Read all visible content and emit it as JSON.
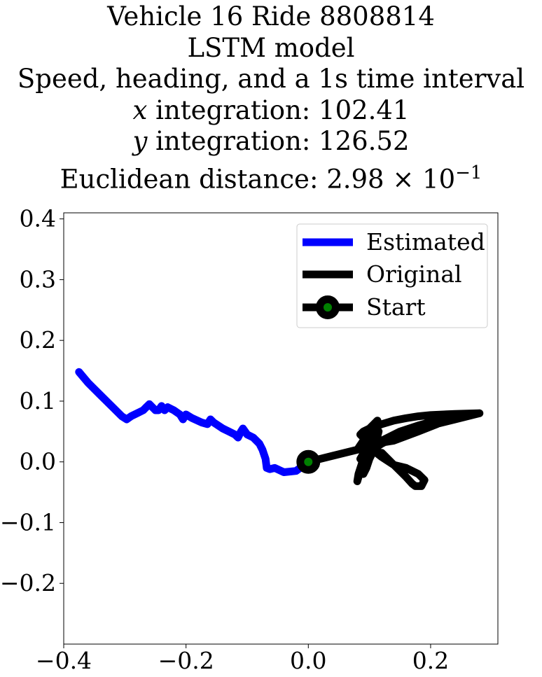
{
  "chart_data": {
    "type": "line",
    "title_lines": [
      "Vehicle 16 Ride 8808814",
      "LSTM model",
      "Speed, heading, and a 1s time interval"
    ],
    "x_integration": {
      "var": "x",
      "label": " integration: ",
      "value": "102.41"
    },
    "y_integration": {
      "var": "y",
      "label": " integration: ",
      "value": "126.52"
    },
    "euclid": {
      "label": "Euclidean distance: ",
      "mantissa": "2.98",
      "times": "×",
      "base": "10",
      "exponent": "−1"
    },
    "xlim": [
      -0.4,
      0.31
    ],
    "ylim": [
      -0.3,
      0.41
    ],
    "grid": false,
    "legend_position": "top-right",
    "x_ticks": [
      {
        "value": -0.4,
        "label": "−0.4"
      },
      {
        "value": -0.2,
        "label": "−0.2"
      },
      {
        "value": 0.0,
        "label": "0.0"
      },
      {
        "value": 0.2,
        "label": "0.2"
      }
    ],
    "y_ticks": [
      {
        "value": 0.4,
        "label": "0.4"
      },
      {
        "value": 0.3,
        "label": "0.3"
      },
      {
        "value": 0.2,
        "label": "0.2"
      },
      {
        "value": 0.1,
        "label": "0.1"
      },
      {
        "value": 0.0,
        "label": "0.0"
      },
      {
        "value": -0.1,
        "label": "−0.1"
      },
      {
        "value": -0.2,
        "label": "−0.2"
      }
    ],
    "series": [
      {
        "name": "Estimated",
        "color": "#0000ff",
        "x": [
          0.0,
          -0.02,
          -0.04,
          -0.055,
          -0.063,
          -0.068,
          -0.07,
          -0.075,
          -0.08,
          -0.09,
          -0.1,
          -0.107,
          -0.11,
          -0.115,
          -0.12,
          -0.13,
          -0.14,
          -0.155,
          -0.16,
          -0.165,
          -0.175,
          -0.19,
          -0.2,
          -0.205,
          -0.21,
          -0.22,
          -0.23,
          -0.235,
          -0.24,
          -0.245,
          -0.25,
          -0.255,
          -0.26,
          -0.265,
          -0.27,
          -0.28,
          -0.29,
          -0.297,
          -0.305,
          -0.32,
          -0.34,
          -0.36,
          -0.375
        ],
        "y": [
          0.0,
          -0.015,
          -0.017,
          -0.01,
          -0.012,
          -0.01,
          0.005,
          0.02,
          0.03,
          0.04,
          0.045,
          0.055,
          0.05,
          0.04,
          0.045,
          0.05,
          0.055,
          0.065,
          0.07,
          0.062,
          0.065,
          0.072,
          0.078,
          0.07,
          0.078,
          0.085,
          0.09,
          0.085,
          0.092,
          0.085,
          0.085,
          0.09,
          0.095,
          0.09,
          0.085,
          0.08,
          0.075,
          0.07,
          0.075,
          0.09,
          0.11,
          0.13,
          0.148
        ]
      },
      {
        "name": "Original",
        "color": "#000000",
        "x": [
          0.0,
          0.04,
          0.08,
          0.09,
          0.095,
          0.105,
          0.113,
          0.1,
          0.09,
          0.085,
          0.08,
          0.082,
          0.09,
          0.1,
          0.108,
          0.115,
          0.11,
          0.1,
          0.093,
          0.09,
          0.095,
          0.1,
          0.105,
          0.12,
          0.13,
          0.14,
          0.16,
          0.18,
          0.19,
          0.185,
          0.175,
          0.17,
          0.16,
          0.15,
          0.14,
          0.12,
          0.105,
          0.1,
          0.095,
          0.09,
          0.085,
          0.09,
          0.1,
          0.12,
          0.14,
          0.16,
          0.18,
          0.2,
          0.24,
          0.28,
          0.24,
          0.2,
          0.17,
          0.14,
          0.12,
          0.105,
          0.12,
          0.15,
          0.18,
          0.21,
          0.25,
          0.28,
          0.23,
          0.18,
          0.14,
          0.11,
          0.095,
          0.088,
          0.085
        ],
        "y": [
          0.0,
          0.01,
          0.02,
          0.035,
          0.05,
          0.06,
          0.068,
          0.04,
          0.01,
          -0.015,
          -0.032,
          -0.02,
          0.005,
          0.025,
          0.04,
          0.05,
          0.03,
          0.01,
          -0.005,
          -0.02,
          -0.01,
          0.005,
          0.015,
          0.015,
          0.005,
          -0.005,
          -0.01,
          -0.02,
          -0.03,
          -0.04,
          -0.04,
          -0.036,
          -0.025,
          -0.015,
          -0.005,
          0.008,
          0.02,
          0.028,
          0.035,
          0.04,
          0.045,
          0.05,
          0.055,
          0.062,
          0.068,
          0.072,
          0.075,
          0.077,
          0.079,
          0.08,
          0.07,
          0.06,
          0.05,
          0.04,
          0.03,
          0.02,
          0.035,
          0.05,
          0.06,
          0.068,
          0.074,
          0.08,
          0.07,
          0.05,
          0.035,
          0.03,
          0.02,
          0.01,
          0.005
        ]
      }
    ],
    "start_point": {
      "name": "Start",
      "x": 0.0,
      "y": 0.0,
      "edge_color": "#000000",
      "face_color": "#008000"
    }
  }
}
